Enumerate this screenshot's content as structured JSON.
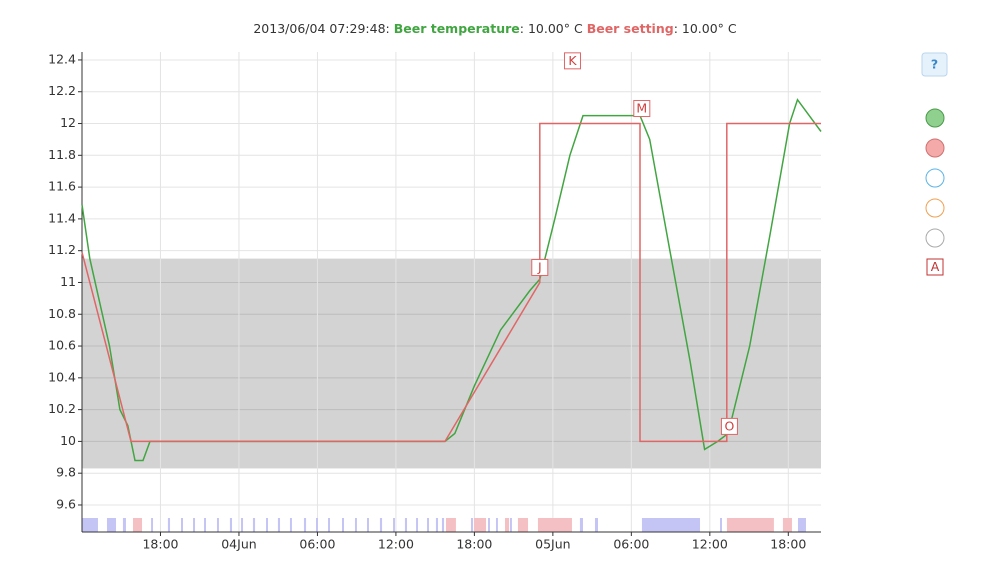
{
  "chart_data": {
    "type": "line",
    "timestamp": "2013/06/04 07:29:48:",
    "readouts": [
      {
        "label": "Beer temperature",
        "sep": ":",
        "value": "10.00° C"
      },
      {
        "label": "Beer setting",
        "sep": ":",
        "value": "10.00° C"
      }
    ],
    "xlim": [
      12,
      68.5
    ],
    "xticks": [
      {
        "value": 18,
        "label": "18:00"
      },
      {
        "value": 24,
        "label": "04Jun"
      },
      {
        "value": 30,
        "label": "06:00"
      },
      {
        "value": 36,
        "label": "12:00"
      },
      {
        "value": 42,
        "label": "18:00"
      },
      {
        "value": 48,
        "label": "05Jun"
      },
      {
        "value": 54,
        "label": "06:00"
      },
      {
        "value": 60,
        "label": "12:00"
      },
      {
        "value": 66,
        "label": "18:00"
      }
    ],
    "ylim": [
      9.43,
      12.45
    ],
    "yticks": [
      9.6,
      9.8,
      10,
      10.2,
      10.4,
      10.6,
      10.8,
      11,
      11.2,
      11.4,
      11.6,
      11.8,
      12,
      12.2,
      12.4
    ],
    "grid": true,
    "band": {
      "from": 9.83,
      "to": 11.15,
      "color": "#d3d3d3"
    },
    "series": [
      {
        "name": "Beer temperature",
        "color": "#41a541",
        "x": [
          12,
          12.6,
          14.1,
          14.9,
          15.5,
          16.05,
          16.66,
          17.2,
          18,
          30,
          39.75,
          40.5,
          42,
          44,
          46.25,
          47,
          48.15,
          49.3,
          50.3,
          51.6,
          54.66,
          55.4,
          56.95,
          58.5,
          59.6,
          60.6,
          61.4,
          63.05,
          64.6,
          66.1,
          66.7,
          67.6,
          68.5
        ],
        "values": [
          11.49,
          11.15,
          10.6,
          10.2,
          10.1,
          9.88,
          9.88,
          10,
          10,
          10,
          10,
          10.05,
          10.35,
          10.7,
          10.95,
          11.02,
          11.4,
          11.8,
          12.05,
          12.05,
          12.05,
          11.9,
          11.2,
          10.5,
          9.95,
          10,
          10.05,
          10.6,
          11.3,
          12,
          12.15,
          12.05,
          11.95
        ]
      },
      {
        "name": "Beer setting",
        "color": "#e06666",
        "x": [
          12,
          15.75,
          39.75,
          47,
          47,
          54.66,
          54.66,
          61.3,
          61.3,
          68.5
        ],
        "values": [
          11.19,
          10,
          10,
          11,
          12,
          12,
          10,
          10,
          12,
          12
        ]
      }
    ],
    "annotations": [
      {
        "text": "J",
        "x": 47,
        "y": 11
      },
      {
        "text": "K",
        "x": 49.5,
        "y": 12.3
      },
      {
        "text": "M",
        "x": 54.8,
        "y": 12
      },
      {
        "text": "O",
        "x": 61.5,
        "y": 10
      }
    ],
    "state_bars": {
      "cooling_color": "#c4c4f5",
      "heating_color": "#f5c0c4",
      "cooling": [
        [
          12,
          13.22
        ],
        [
          13.91,
          14.6
        ],
        [
          15.13,
          15.36
        ],
        [
          17.28,
          17.43
        ],
        [
          18.57,
          18.73
        ],
        [
          19.57,
          19.72
        ],
        [
          20.49,
          20.64
        ],
        [
          21.33,
          21.48
        ],
        [
          22.32,
          22.47
        ],
        [
          23.31,
          23.47
        ],
        [
          24.16,
          24.31
        ],
        [
          25.07,
          25.23
        ],
        [
          26.07,
          26.22
        ],
        [
          26.98,
          27.14
        ],
        [
          27.9,
          28.05
        ],
        [
          28.97,
          29.13
        ],
        [
          29.89,
          30.04
        ],
        [
          30.81,
          30.96
        ],
        [
          31.88,
          32.03
        ],
        [
          32.87,
          33.02
        ],
        [
          33.79,
          33.94
        ],
        [
          34.78,
          34.94
        ],
        [
          35.78,
          35.93
        ],
        [
          36.69,
          36.85
        ],
        [
          37.54,
          37.69
        ],
        [
          38.38,
          38.53
        ],
        [
          39.06,
          39.22
        ],
        [
          39.52,
          39.68
        ],
        [
          41.74,
          41.89
        ],
        [
          43.04,
          43.19
        ],
        [
          43.65,
          43.8
        ],
        [
          44.72,
          44.87
        ],
        [
          50.07,
          50.3
        ],
        [
          51.22,
          51.45
        ],
        [
          54.81,
          59.25
        ],
        [
          60.78,
          60.93
        ],
        [
          66.74,
          67.35
        ]
      ],
      "heating": [
        [
          15.9,
          16.59
        ],
        [
          39.83,
          40.59
        ],
        [
          41.97,
          42.89
        ],
        [
          44.34,
          44.65
        ],
        [
          45.33,
          46.1
        ],
        [
          46.86,
          49.46
        ],
        [
          61.31,
          64.9
        ],
        [
          65.59,
          66.28
        ]
      ]
    },
    "help_button": "?",
    "annotation_button": "A"
  }
}
